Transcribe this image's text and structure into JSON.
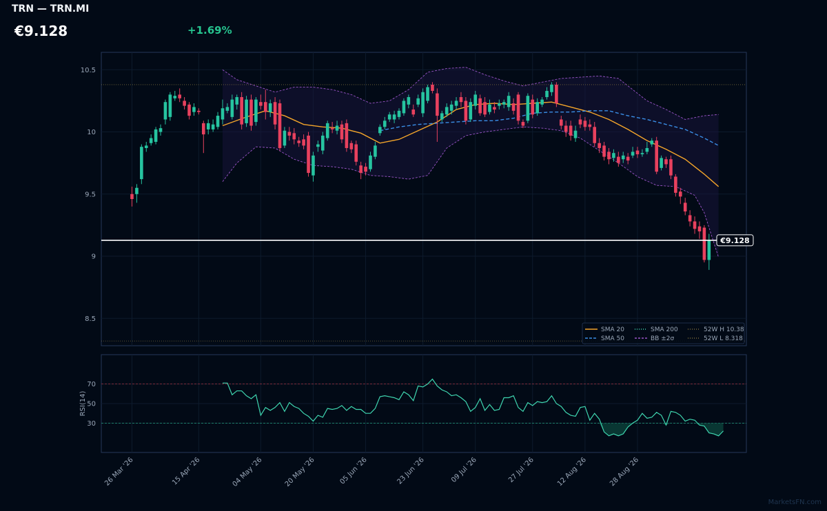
{
  "header": {
    "title": "TRN — TRN.MI",
    "price": "€9.128",
    "change": "+1.69%"
  },
  "watermark": "MarketsFN.com",
  "colors": {
    "background": "#020a16",
    "panel_border": "#26385a",
    "up": "#26c4a0",
    "down": "#e8415e",
    "sma20": "#f4a52a",
    "sma50": "#3a8ee6",
    "bb": "#9a55c8",
    "rsi": "#3fd6b0",
    "price_line": "#ffffff"
  },
  "chart_data": [
    {
      "type": "candlestick",
      "ylim": [
        8.28,
        10.64
      ],
      "yticks": [
        8.5,
        9,
        9.5,
        10,
        10.5
      ],
      "ytick_labels": [
        "8.5",
        "9",
        "9.5",
        "10",
        "10.5"
      ],
      "xtick_labels": [
        "26 Mar '26",
        "15 Apr '26",
        "04 May '26",
        "20 May '26",
        "05 Jun '26",
        "23 Jun '26",
        "09 Jul '26",
        "27 Jul '26",
        "12 Aug '26",
        "28 Aug '26"
      ],
      "xtick_index": [
        0,
        14,
        27,
        38,
        49,
        61,
        72,
        84,
        95,
        106
      ],
      "price_label": "€9.128",
      "last_price": 9.128,
      "high_52w": 10.38,
      "low_52w": 8.318,
      "legend": [
        "SMA 20",
        "SMA 50",
        "SMA 200",
        "BB ±2σ",
        "52W H 10.38",
        "52W L 8.318"
      ],
      "legend_position": "bottom-right",
      "candles": [
        [
          9.5,
          9.46,
          9.56,
          9.4
        ],
        [
          9.5,
          9.55,
          9.58,
          9.43
        ],
        [
          9.62,
          9.88,
          9.9,
          9.58
        ],
        [
          9.87,
          9.89,
          9.92,
          9.84
        ],
        [
          9.91,
          9.95,
          9.98,
          9.89
        ],
        [
          9.92,
          10.02,
          10.04,
          9.9
        ],
        [
          10.0,
          10.03,
          10.06,
          9.97
        ],
        [
          10.1,
          10.24,
          10.26,
          10.06
        ],
        [
          10.12,
          10.3,
          10.32,
          10.09
        ],
        [
          10.27,
          10.29,
          10.33,
          10.25
        ],
        [
          10.3,
          10.27,
          10.35,
          10.24
        ],
        [
          10.25,
          10.21,
          10.28,
          10.18
        ],
        [
          10.22,
          10.13,
          10.24,
          10.1
        ],
        [
          10.16,
          10.2,
          10.23,
          10.13
        ],
        [
          10.17,
          10.16,
          10.19,
          10.14
        ],
        [
          10.07,
          9.98,
          10.09,
          9.83
        ],
        [
          10.02,
          10.07,
          10.1,
          9.98
        ],
        [
          10.02,
          10.06,
          10.1,
          10.0
        ],
        [
          10.04,
          10.13,
          10.16,
          10.02
        ],
        [
          10.1,
          10.19,
          10.26,
          10.06
        ],
        [
          10.17,
          10.2,
          10.23,
          10.15
        ],
        [
          10.12,
          10.26,
          10.3,
          10.1
        ],
        [
          10.22,
          10.28,
          10.3,
          10.18
        ],
        [
          10.28,
          10.06,
          10.32,
          10.02
        ],
        [
          10.07,
          10.26,
          10.29,
          10.04
        ],
        [
          10.26,
          10.05,
          10.3,
          10.01
        ],
        [
          10.08,
          10.26,
          10.28,
          10.05
        ],
        [
          10.24,
          10.21,
          10.3,
          10.18
        ],
        [
          10.24,
          10.16,
          10.34,
          10.1
        ],
        [
          10.16,
          10.23,
          10.26,
          10.12
        ],
        [
          10.24,
          10.06,
          10.28,
          10.02
        ],
        [
          10.23,
          9.87,
          10.26,
          9.85
        ],
        [
          9.89,
          10.01,
          10.04,
          9.87
        ],
        [
          10.0,
          9.97,
          10.04,
          9.93
        ],
        [
          9.99,
          9.94,
          10.03,
          9.9
        ],
        [
          9.93,
          9.91,
          9.96,
          9.88
        ],
        [
          9.94,
          9.89,
          9.98,
          9.86
        ],
        [
          9.97,
          9.67,
          10.0,
          9.64
        ],
        [
          9.65,
          9.81,
          9.84,
          9.6
        ],
        [
          9.88,
          9.9,
          9.93,
          9.84
        ],
        [
          9.85,
          9.97,
          10.0,
          9.82
        ],
        [
          9.95,
          10.07,
          10.09,
          9.93
        ],
        [
          10.03,
          10.02,
          10.08,
          9.99
        ],
        [
          10.01,
          10.05,
          10.09,
          9.98
        ],
        [
          10.06,
          9.94,
          10.09,
          9.91
        ],
        [
          10.07,
          9.87,
          10.1,
          9.84
        ],
        [
          9.91,
          9.86,
          9.93,
          9.83
        ],
        [
          9.9,
          9.76,
          9.93,
          9.73
        ],
        [
          9.73,
          9.67,
          9.76,
          9.62
        ],
        [
          9.72,
          9.68,
          9.75,
          9.65
        ],
        [
          9.7,
          9.81,
          9.84,
          9.68
        ],
        [
          9.8,
          9.89,
          9.92,
          9.78
        ],
        [
          9.99,
          10.04,
          10.06,
          9.97
        ],
        [
          10.04,
          10.09,
          10.12,
          10.02
        ],
        [
          10.1,
          10.14,
          10.16,
          10.08
        ],
        [
          10.1,
          10.14,
          10.17,
          10.07
        ],
        [
          10.12,
          10.17,
          10.19,
          10.1
        ],
        [
          10.15,
          10.25,
          10.27,
          10.13
        ],
        [
          10.22,
          10.28,
          10.3,
          10.19
        ],
        [
          10.18,
          10.14,
          10.22,
          10.12
        ],
        [
          10.22,
          10.27,
          10.3,
          10.2
        ],
        [
          10.15,
          10.32,
          10.35,
          10.12
        ],
        [
          10.25,
          10.36,
          10.38,
          10.23
        ],
        [
          10.38,
          10.33,
          10.4,
          10.31
        ],
        [
          10.31,
          10.13,
          10.35,
          9.92
        ],
        [
          10.1,
          10.15,
          10.17,
          10.08
        ],
        [
          10.14,
          10.2,
          10.23,
          10.12
        ],
        [
          10.17,
          10.22,
          10.25,
          10.14
        ],
        [
          10.21,
          10.25,
          10.28,
          10.18
        ],
        [
          10.28,
          10.24,
          10.32,
          10.2
        ],
        [
          10.25,
          10.09,
          10.28,
          10.06
        ],
        [
          10.1,
          10.24,
          10.27,
          10.08
        ],
        [
          10.21,
          10.3,
          10.33,
          10.18
        ],
        [
          10.27,
          10.15,
          10.3,
          10.13
        ],
        [
          10.24,
          10.14,
          10.28,
          10.12
        ],
        [
          10.16,
          10.22,
          10.26,
          10.14
        ],
        [
          10.2,
          10.18,
          10.24,
          10.15
        ],
        [
          10.21,
          10.23,
          10.26,
          10.18
        ],
        [
          10.22,
          10.24,
          10.26,
          10.19
        ],
        [
          10.2,
          10.29,
          10.32,
          10.17
        ],
        [
          10.23,
          10.17,
          10.27,
          10.14
        ],
        [
          10.3,
          10.09,
          10.32,
          10.06
        ],
        [
          10.08,
          10.05,
          10.1,
          10.03
        ],
        [
          10.09,
          10.29,
          10.31,
          10.07
        ],
        [
          10.26,
          10.14,
          10.3,
          10.11
        ],
        [
          10.15,
          10.24,
          10.27,
          10.13
        ],
        [
          10.22,
          10.26,
          10.28,
          10.2
        ],
        [
          10.28,
          10.33,
          10.36,
          10.26
        ],
        [
          10.32,
          10.38,
          10.4,
          10.29
        ],
        [
          10.38,
          10.23,
          10.4,
          10.2
        ],
        [
          10.1,
          10.05,
          10.13,
          10.02
        ],
        [
          10.05,
          10.0,
          10.09,
          9.96
        ],
        [
          10.05,
          9.97,
          10.09,
          9.93
        ],
        [
          9.95,
          10.01,
          10.05,
          9.92
        ],
        [
          10.1,
          10.06,
          10.14,
          10.03
        ],
        [
          10.09,
          10.04,
          10.12,
          10.01
        ],
        [
          10.06,
          10.04,
          10.1,
          10.01
        ],
        [
          10.04,
          9.91,
          10.08,
          9.88
        ],
        [
          9.91,
          9.87,
          9.95,
          9.83
        ],
        [
          9.89,
          9.8,
          9.92,
          9.77
        ],
        [
          9.84,
          9.78,
          9.87,
          9.74
        ],
        [
          9.79,
          9.83,
          9.86,
          9.76
        ],
        [
          9.8,
          9.75,
          9.84,
          9.72
        ],
        [
          9.78,
          9.81,
          9.84,
          9.75
        ],
        [
          9.8,
          9.77,
          9.83,
          9.74
        ],
        [
          9.81,
          9.84,
          9.88,
          9.79
        ],
        [
          9.85,
          9.82,
          9.88,
          9.79
        ],
        [
          9.82,
          9.83,
          9.86,
          9.8
        ],
        [
          9.84,
          9.87,
          9.92,
          9.82
        ],
        [
          9.9,
          9.93,
          9.95,
          9.88
        ],
        [
          9.93,
          9.68,
          9.96,
          9.66
        ],
        [
          9.71,
          9.79,
          9.81,
          9.69
        ],
        [
          9.78,
          9.74,
          9.8,
          9.71
        ],
        [
          9.78,
          9.65,
          9.81,
          9.62
        ],
        [
          9.64,
          9.51,
          9.66,
          9.48
        ],
        [
          9.52,
          9.48,
          9.55,
          9.42
        ],
        [
          9.43,
          9.36,
          9.47,
          9.33
        ],
        [
          9.33,
          9.28,
          9.37,
          9.24
        ],
        [
          9.28,
          9.22,
          9.32,
          9.18
        ],
        [
          9.24,
          9.2,
          9.28,
          9.14
        ],
        [
          9.23,
          8.97,
          9.25,
          8.95
        ],
        [
          8.97,
          9.13,
          9.18,
          8.89
        ]
      ],
      "sma20": [
        [
          19,
          10.05
        ],
        [
          24,
          10.12
        ],
        [
          28,
          10.17
        ],
        [
          32,
          10.13
        ],
        [
          36,
          10.06
        ],
        [
          40,
          10.04
        ],
        [
          44,
          10.03
        ],
        [
          48,
          9.99
        ],
        [
          52,
          9.91
        ],
        [
          56,
          9.94
        ],
        [
          60,
          10.01
        ],
        [
          64,
          10.08
        ],
        [
          68,
          10.18
        ],
        [
          72,
          10.22
        ],
        [
          76,
          10.23
        ],
        [
          80,
          10.22
        ],
        [
          84,
          10.23
        ],
        [
          88,
          10.24
        ],
        [
          92,
          10.2
        ],
        [
          96,
          10.16
        ],
        [
          100,
          10.1
        ],
        [
          104,
          10.02
        ],
        [
          108,
          9.93
        ],
        [
          112,
          9.86
        ],
        [
          116,
          9.78
        ],
        [
          120,
          9.66
        ],
        [
          123,
          9.56
        ]
      ],
      "sma50": [
        [
          52,
          10.01
        ],
        [
          56,
          10.04
        ],
        [
          60,
          10.06
        ],
        [
          64,
          10.07
        ],
        [
          68,
          10.08
        ],
        [
          72,
          10.09
        ],
        [
          76,
          10.09
        ],
        [
          80,
          10.11
        ],
        [
          84,
          10.15
        ],
        [
          88,
          10.16
        ],
        [
          92,
          10.16
        ],
        [
          96,
          10.17
        ],
        [
          100,
          10.17
        ],
        [
          104,
          10.13
        ],
        [
          108,
          10.1
        ],
        [
          112,
          10.06
        ],
        [
          116,
          10.02
        ],
        [
          120,
          9.95
        ],
        [
          123,
          9.89
        ]
      ],
      "bb_upper": [
        [
          19,
          10.5
        ],
        [
          22,
          10.42
        ],
        [
          26,
          10.37
        ],
        [
          30,
          10.32
        ],
        [
          34,
          10.36
        ],
        [
          38,
          10.36
        ],
        [
          42,
          10.34
        ],
        [
          46,
          10.3
        ],
        [
          50,
          10.23
        ],
        [
          54,
          10.25
        ],
        [
          58,
          10.34
        ],
        [
          62,
          10.48
        ],
        [
          66,
          10.51
        ],
        [
          70,
          10.52
        ],
        [
          74,
          10.46
        ],
        [
          78,
          10.41
        ],
        [
          82,
          10.37
        ],
        [
          86,
          10.4
        ],
        [
          90,
          10.43
        ],
        [
          94,
          10.44
        ],
        [
          98,
          10.45
        ],
        [
          102,
          10.43
        ],
        [
          104,
          10.37
        ],
        [
          108,
          10.25
        ],
        [
          112,
          10.18
        ],
        [
          116,
          10.1
        ],
        [
          120,
          10.13
        ],
        [
          123,
          10.14
        ]
      ],
      "bb_lower": [
        [
          19,
          9.6
        ],
        [
          22,
          9.75
        ],
        [
          26,
          9.88
        ],
        [
          30,
          9.87
        ],
        [
          34,
          9.78
        ],
        [
          38,
          9.73
        ],
        [
          42,
          9.72
        ],
        [
          46,
          9.7
        ],
        [
          50,
          9.65
        ],
        [
          54,
          9.64
        ],
        [
          58,
          9.62
        ],
        [
          62,
          9.65
        ],
        [
          66,
          9.87
        ],
        [
          70,
          9.97
        ],
        [
          74,
          10.0
        ],
        [
          78,
          10.02
        ],
        [
          82,
          10.04
        ],
        [
          86,
          10.03
        ],
        [
          90,
          10.01
        ],
        [
          94,
          9.95
        ],
        [
          98,
          9.85
        ],
        [
          102,
          9.75
        ],
        [
          106,
          9.64
        ],
        [
          110,
          9.57
        ],
        [
          114,
          9.56
        ],
        [
          118,
          9.49
        ],
        [
          120,
          9.35
        ],
        [
          123,
          8.99
        ]
      ]
    },
    {
      "type": "line",
      "ylabel": "RSI(14)",
      "ylim": [
        0,
        100
      ],
      "yticks": [
        30,
        50,
        70
      ],
      "ytick_labels": [
        "30",
        "50",
        "70"
      ],
      "overbought": 70,
      "oversold": 30,
      "x_start": 19,
      "values": [
        71,
        71,
        59,
        63,
        63,
        58,
        55,
        59,
        38,
        46,
        43,
        46,
        51,
        42,
        51,
        47,
        45,
        40,
        37,
        32,
        38,
        36,
        45,
        44,
        45,
        48,
        43,
        47,
        44,
        44,
        40,
        40,
        45,
        57,
        58,
        57,
        56,
        54,
        62,
        59,
        53,
        68,
        67,
        70,
        75,
        68,
        64,
        62,
        58,
        59,
        56,
        52,
        42,
        46,
        55,
        43,
        49,
        43,
        44,
        56,
        56,
        58,
        46,
        42,
        51,
        48,
        52,
        51,
        52,
        58,
        50,
        47,
        41,
        38,
        37,
        46,
        47,
        33,
        40,
        34,
        21,
        17,
        19,
        17,
        19,
        26,
        30,
        33,
        40,
        35,
        36,
        41,
        38,
        28,
        42,
        41,
        38,
        32,
        34,
        33,
        28,
        27,
        20,
        19,
        17,
        22
      ]
    }
  ]
}
